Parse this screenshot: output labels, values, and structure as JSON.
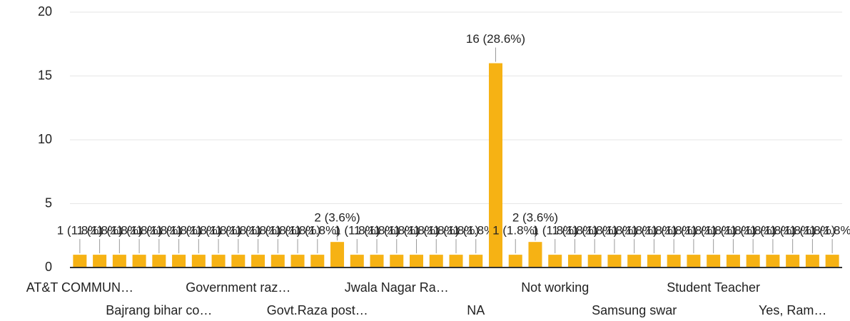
{
  "chart_data": {
    "type": "bar",
    "categories": [
      "AT&T COMMUN…",
      null,
      null,
      null,
      "Bajrang bihar co…",
      null,
      null,
      null,
      "Government raz…",
      null,
      null,
      null,
      "Govt.Raza post…",
      null,
      null,
      null,
      "Jwala Nagar Ra…",
      null,
      null,
      null,
      "NA",
      null,
      null,
      null,
      "Not working",
      null,
      null,
      null,
      "Samsung swar",
      null,
      null,
      null,
      "Student Teacher",
      null,
      null,
      null,
      "Yes, Ram…",
      null,
      null
    ],
    "values": [
      1,
      1,
      1,
      1,
      1,
      1,
      1,
      1,
      1,
      1,
      1,
      1,
      1,
      2,
      1,
      1,
      1,
      1,
      1,
      1,
      1,
      16,
      1,
      2,
      1,
      1,
      1,
      1,
      1,
      1,
      1,
      1,
      1,
      1,
      1,
      1,
      1,
      1,
      1
    ],
    "value_labels": [
      "1 (1.8%)",
      "1 (1.8%)",
      "1 (1.8%)",
      "1 (1.8%)",
      "1 (1.8%)",
      "1 (1.8%)",
      "1 (1.8%)",
      "1 (1.8%)",
      "1 (1.8%)",
      "1 (1.8%)",
      "1 (1.8%)",
      "1 (1.8%)",
      "1 (1.8%)",
      "2 (3.6%)",
      "1 (1.8%)",
      "1 (1.8%)",
      "1 (1.8%)",
      "1 (1.8%)",
      "1 (1.8%)",
      "1 (1.8%)",
      "1 (1.8%)",
      "16 (28.6%)",
      "1 (1.8%)",
      "2 (3.6%)",
      "1 (1.8%)",
      "1 (1.8%)",
      "1 (1.8%)",
      "1 (1.8%)",
      "1 (1.8%)",
      "1 (1.8%)",
      "1 (1.8%)",
      "1 (1.8%)",
      "1 (1.8%)",
      "1 (1.8%)",
      "1 (1.8%)",
      "1 (1.8%)",
      "1 (1.8%)",
      "1 (1.8%)",
      "1 (1.8%)"
    ],
    "color": "#f6b214",
    "ylim": [
      0,
      20
    ],
    "yticks": [
      0,
      5,
      10,
      15,
      20
    ],
    "grid": true
  }
}
